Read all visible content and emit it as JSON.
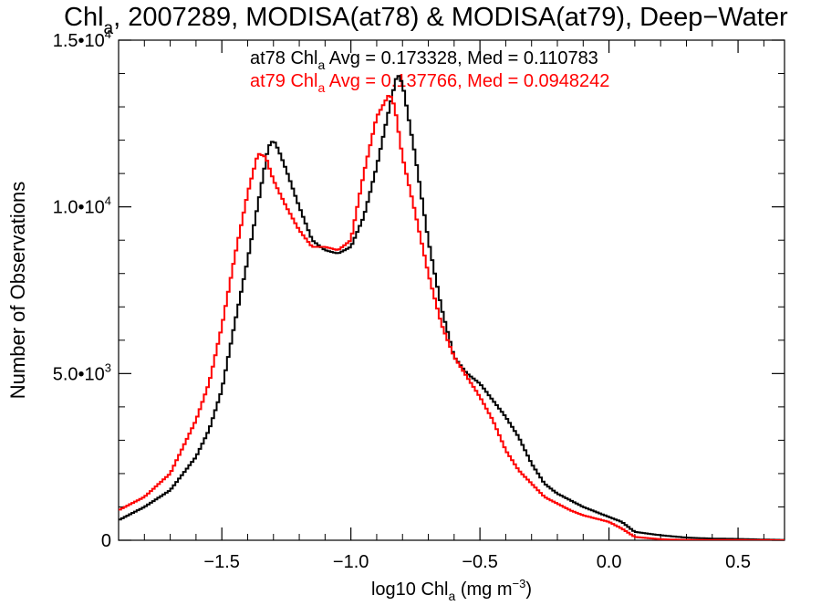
{
  "chart_data": {
    "type": "line",
    "title_parts": [
      "Chl",
      "a",
      ", 2007289, MODISA(at78) & MODISA(at79), Deep−Water"
    ],
    "xlabel_parts": [
      "log10 Chl",
      "a",
      " (mg m",
      "−3",
      ")"
    ],
    "ylabel": "Number of Observations",
    "xlim": [
      -1.9,
      0.68
    ],
    "ylim": [
      0,
      15000
    ],
    "x_ticks": [
      {
        "value": -1.5,
        "label": "−1.5"
      },
      {
        "value": -1.0,
        "label": "−1.0"
      },
      {
        "value": -0.5,
        "label": "−0.5"
      },
      {
        "value": 0.0,
        "label": "0.0"
      },
      {
        "value": 0.5,
        "label": "0.5"
      }
    ],
    "y_ticks": [
      {
        "value": 0,
        "mant": "0",
        "exp": ""
      },
      {
        "value": 5000,
        "mant": "5.0•10",
        "exp": "3"
      },
      {
        "value": 10000,
        "mant": "1.0•10",
        "exp": "4"
      },
      {
        "value": 15000,
        "mant": "1.5•10",
        "exp": "4"
      }
    ],
    "grid": false,
    "annotations": [
      {
        "parts": [
          "at78 Chl",
          "a",
          " Avg = 0.173328, Med = 0.110783"
        ],
        "color": "#000000"
      },
      {
        "parts": [
          "at79 Chl",
          "a",
          " Avg = 0.137766, Med = 0.0948242"
        ],
        "color": "#ff0000"
      }
    ],
    "series": [
      {
        "color": "#000000",
        "x": [
          -1.9,
          -1.8,
          -1.7,
          -1.6,
          -1.55,
          -1.5,
          -1.45,
          -1.4,
          -1.35,
          -1.32,
          -1.3,
          -1.28,
          -1.25,
          -1.2,
          -1.15,
          -1.1,
          -1.05,
          -1.0,
          -0.95,
          -0.9,
          -0.85,
          -0.82,
          -0.8,
          -0.75,
          -0.7,
          -0.65,
          -0.6,
          -0.55,
          -0.5,
          -0.45,
          -0.4,
          -0.35,
          -0.3,
          -0.25,
          -0.2,
          -0.15,
          -0.1,
          -0.05,
          0.0,
          0.05,
          0.1,
          0.2,
          0.3,
          0.4,
          0.5,
          0.6,
          0.68
        ],
        "y": [
          600,
          1000,
          1500,
          2500,
          3300,
          4500,
          6500,
          8400,
          10500,
          11800,
          12000,
          11700,
          11100,
          10000,
          9000,
          8700,
          8600,
          8800,
          9700,
          11200,
          13000,
          14000,
          13700,
          11500,
          9000,
          7000,
          5500,
          5000,
          4700,
          4200,
          3700,
          3100,
          2300,
          1700,
          1400,
          1200,
          1000,
          850,
          700,
          550,
          250,
          150,
          80,
          50,
          40,
          20,
          10
        ]
      },
      {
        "color": "#ff0000",
        "x": [
          -1.9,
          -1.8,
          -1.7,
          -1.6,
          -1.55,
          -1.5,
          -1.45,
          -1.4,
          -1.36,
          -1.33,
          -1.3,
          -1.25,
          -1.2,
          -1.15,
          -1.1,
          -1.05,
          -1.0,
          -0.95,
          -0.9,
          -0.85,
          -0.83,
          -0.8,
          -0.75,
          -0.7,
          -0.65,
          -0.6,
          -0.55,
          -0.5,
          -0.45,
          -0.4,
          -0.35,
          -0.3,
          -0.25,
          -0.2,
          -0.15,
          -0.1,
          -0.05,
          0.0,
          0.05,
          0.1,
          0.2,
          0.3,
          0.5,
          0.68
        ],
        "y": [
          900,
          1300,
          2000,
          3600,
          4700,
          6400,
          8500,
          10400,
          11600,
          11500,
          10800,
          10000,
          9300,
          8800,
          8800,
          8700,
          9000,
          11000,
          12700,
          13400,
          13000,
          11500,
          9800,
          8000,
          6500,
          5500,
          4900,
          4300,
          3600,
          2700,
          2100,
          1700,
          1300,
          1100,
          900,
          750,
          650,
          550,
          350,
          100,
          30,
          10,
          5,
          0
        ]
      }
    ]
  }
}
